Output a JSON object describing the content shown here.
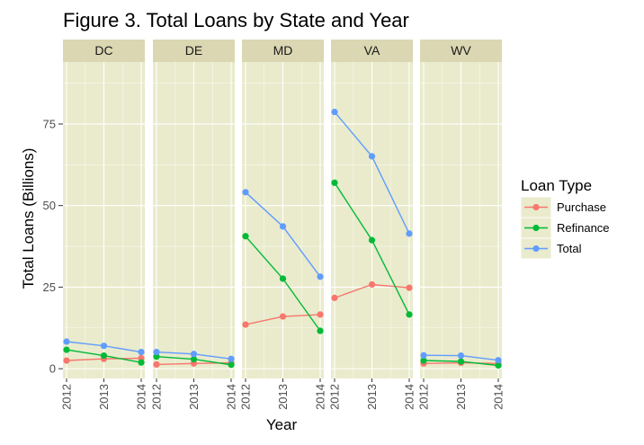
{
  "chart_data": {
    "type": "line",
    "title": "Figure 3. Total Loans by State and Year",
    "xlabel": "Year",
    "ylabel": "Total Loans (Billions)",
    "facets": [
      "DC",
      "DE",
      "MD",
      "VA",
      "WV"
    ],
    "x": [
      "2012",
      "2013",
      "2014"
    ],
    "ylim": [
      -3,
      94
    ],
    "yticks": [
      0,
      25,
      50,
      75
    ],
    "legend": {
      "title": "Loan Type",
      "position": "right"
    },
    "grid": true,
    "series": [
      {
        "name": "Purchase",
        "color": "#F8766D",
        "values": {
          "DC": [
            2.5,
            3.0,
            3.2
          ],
          "DE": [
            1.3,
            1.6,
            1.8
          ],
          "MD": [
            13.5,
            16.0,
            16.6
          ],
          "VA": [
            21.7,
            25.8,
            24.8
          ],
          "WV": [
            1.6,
            1.8,
            1.6
          ]
        }
      },
      {
        "name": "Refinance",
        "color": "#00BA38",
        "values": {
          "DC": [
            5.8,
            4.0,
            1.9
          ],
          "DE": [
            3.7,
            2.9,
            1.2
          ],
          "MD": [
            40.6,
            27.6,
            11.6
          ],
          "VA": [
            57.0,
            39.4,
            16.6
          ],
          "WV": [
            2.5,
            2.2,
            1.0
          ]
        }
      },
      {
        "name": "Total",
        "color": "#619CFF",
        "values": {
          "DC": [
            8.3,
            7.0,
            5.1
          ],
          "DE": [
            5.1,
            4.5,
            3.0
          ],
          "MD": [
            54.1,
            43.6,
            28.2
          ],
          "VA": [
            78.7,
            65.1,
            41.4
          ],
          "WV": [
            4.1,
            4.0,
            2.6
          ]
        }
      }
    ]
  }
}
